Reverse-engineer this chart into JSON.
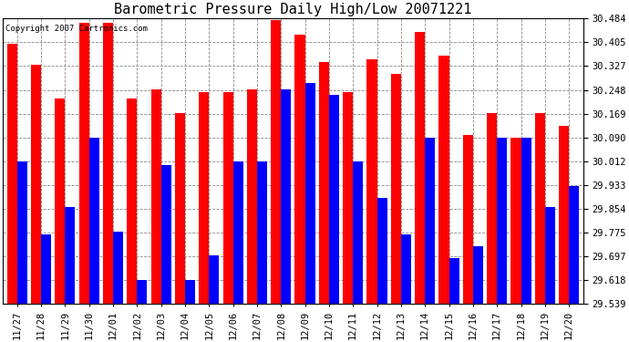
{
  "title": "Barometric Pressure Daily High/Low 20071221",
  "copyright": "Copyright 2007 Cartronics.com",
  "categories": [
    "11/27",
    "11/28",
    "11/29",
    "11/30",
    "12/01",
    "12/02",
    "12/03",
    "12/04",
    "12/05",
    "12/06",
    "12/07",
    "12/08",
    "12/09",
    "12/10",
    "12/11",
    "12/12",
    "12/13",
    "12/14",
    "12/15",
    "12/16",
    "12/17",
    "12/18",
    "12/19",
    "12/20"
  ],
  "highs": [
    30.4,
    30.33,
    30.22,
    30.47,
    30.47,
    30.22,
    30.25,
    30.17,
    30.24,
    30.24,
    30.25,
    30.48,
    30.43,
    30.34,
    30.24,
    30.35,
    30.3,
    30.44,
    30.36,
    30.1,
    30.17,
    30.09,
    30.17,
    30.13
  ],
  "lows": [
    30.01,
    29.77,
    29.86,
    30.09,
    29.78,
    29.62,
    30.0,
    29.62,
    29.7,
    30.01,
    30.01,
    30.25,
    30.27,
    30.23,
    30.01,
    29.89,
    29.77,
    30.09,
    29.69,
    29.73,
    30.09,
    30.09,
    29.86,
    29.93
  ],
  "yticks": [
    29.539,
    29.618,
    29.697,
    29.775,
    29.854,
    29.933,
    30.012,
    30.09,
    30.169,
    30.248,
    30.327,
    30.405,
    30.484
  ],
  "ymin": 29.539,
  "ymax": 30.484,
  "high_color": "#ff0000",
  "low_color": "#0000ff",
  "bg_color": "#ffffff",
  "grid_color": "#888888",
  "title_fontsize": 11,
  "tick_fontsize": 7.5,
  "copyright_fontsize": 6.5
}
